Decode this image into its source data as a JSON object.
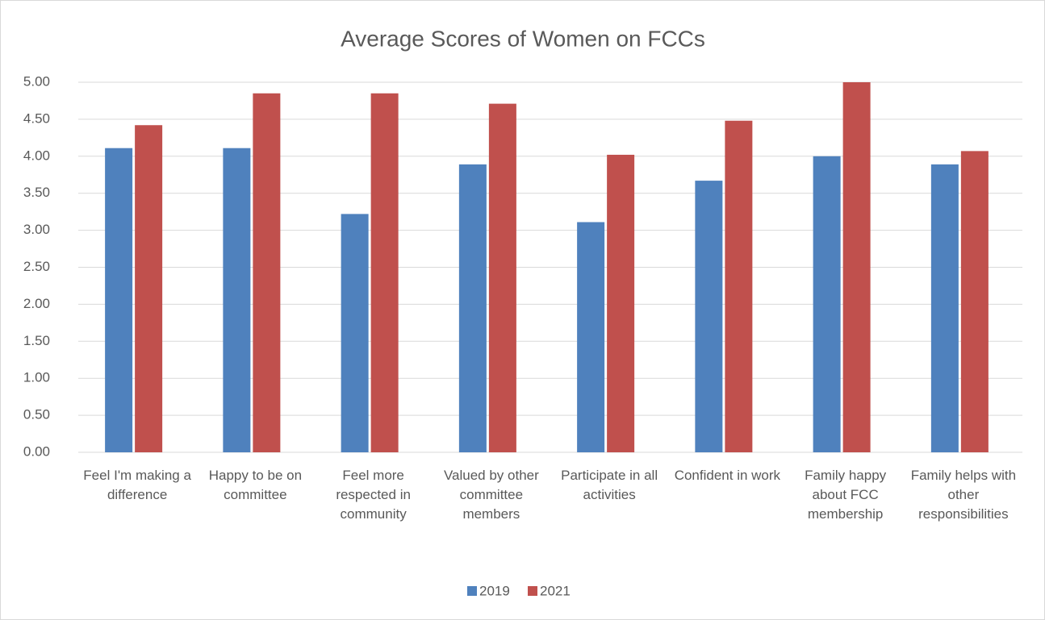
{
  "chart_data": {
    "type": "bar",
    "title": "Average Scores of Women on FCCs",
    "categories": [
      "Feel I'm making a difference",
      "Happy to be on committee",
      "Feel more respected in community",
      "Valued by other committee members",
      "Participate in all activities",
      "Confident in work",
      "Family happy about FCC membership",
      "Family helps with other responsibilities"
    ],
    "series": [
      {
        "name": "2019",
        "color": "#4f81bd",
        "values": [
          4.11,
          4.11,
          3.22,
          3.89,
          3.11,
          3.67,
          4.0,
          3.89
        ]
      },
      {
        "name": "2021",
        "color": "#c0504d",
        "values": [
          4.42,
          4.85,
          4.85,
          4.71,
          4.02,
          4.48,
          5.0,
          4.07
        ]
      }
    ],
    "ylim": [
      0,
      5
    ],
    "yticks": [
      {
        "value": 0,
        "label": "0.00"
      },
      {
        "value": 0.5,
        "label": "0.50"
      },
      {
        "value": 1,
        "label": "1.00"
      },
      {
        "value": 1.5,
        "label": "1.50"
      },
      {
        "value": 2,
        "label": "2.00"
      },
      {
        "value": 2.5,
        "label": "2.50"
      },
      {
        "value": 3,
        "label": "3.00"
      },
      {
        "value": 3.5,
        "label": "3.50"
      },
      {
        "value": 4,
        "label": "4.00"
      },
      {
        "value": 4.5,
        "label": "4.50"
      },
      {
        "value": 5,
        "label": "5.00"
      }
    ],
    "grid": true,
    "legend": "bottom"
  }
}
